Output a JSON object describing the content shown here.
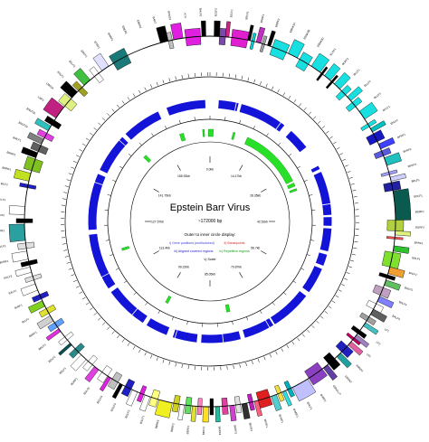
{
  "title": "Epstein Barr Virus",
  "subtitle": "~172000 bp",
  "legend": {
    "heading": "Outer to inner circle display:",
    "items": [
      {
        "text": "i) Gene positions (multicolored)",
        "color": "#3a3ad0"
      },
      {
        "text": "ii) Breakpoints",
        "color": "#e02020"
      },
      {
        "text": "iii) Aligned covered regions",
        "color": "#2020d0"
      },
      {
        "text": "iv) Repetitive regions",
        "color": "#18a018"
      },
      {
        "text": "v) Scale",
        "color": "#000000"
      }
    ]
  },
  "scale_labels": [
    "0.0kb",
    "14.17kb",
    "28.35kb",
    "42.52kb",
    "56.7kb",
    "70.87kb",
    "85.05kb",
    "99.22kb",
    "113.4kb",
    "127.57kb",
    "141.75kb",
    "155.92kb"
  ],
  "colors": {
    "aligned": "#1414d8",
    "repeat": "#28e028",
    "ring": "#000000"
  },
  "gene_labels": [
    "BZLF2",
    "BZLF1",
    "BRLF1",
    "BRRF1",
    "BRRF2",
    "EBNA3A",
    "EBNA3B",
    "EBNA3C",
    "BLRF1",
    "BLRF2",
    "BLLF1",
    "BLLF2",
    "BLLF3",
    "BFLF1",
    "BFLF2",
    "BFRF1",
    "BFRF2",
    "BFRF3",
    "BPLF1",
    "BOLF1",
    "BORF1",
    "BORF2",
    "BARF1",
    "BALF1",
    "BALF2",
    "BALF3",
    "BALF4",
    "BALF5",
    "LF1",
    "LF2",
    "LF3",
    "EBNA1",
    "EBNA2",
    "EBNA-LP",
    "BHRF1",
    "BHLF1",
    "BWRF1",
    "BCRF1",
    "BKRF1",
    "BKRF2",
    "BKRF3",
    "BKRF4",
    "BBLF1",
    "BBRF1",
    "BBRF2",
    "BBRF3",
    "BGLF1",
    "BGLF2",
    "BGLF3",
    "BGLF4",
    "BGLF5",
    "BGRF1",
    "BDLF1",
    "BDLF2",
    "BDLF3",
    "BDRF1",
    "BcLF1",
    "BcRF1",
    "BXLF1",
    "BXLF2",
    "BXRF1",
    "BVLF1",
    "BVRF1",
    "BVRF2",
    "BILF1",
    "BILF2",
    "BMRF1",
    "BMRF2",
    "BMLF1",
    "BNLF2a",
    "BNLF2b",
    "LMP1",
    "LMP2A",
    "BSLF1",
    "BSLF2",
    "BSRF1",
    "BTRF1",
    "BNRF1",
    "EBER1",
    "EBER2",
    "BART",
    "RPMS1",
    "A73",
    "BALF2"
  ],
  "genes": [
    {
      "s": 0.6,
      "e": 1.4,
      "c": "#000000"
    },
    {
      "s": 1.4,
      "e": 2.3,
      "c": "#7a4aa8"
    },
    {
      "s": 2.3,
      "e": 2.8,
      "c": "#d02080"
    },
    {
      "s": 3.2,
      "e": 5.6,
      "c": "#e020d0"
    },
    {
      "s": 5.6,
      "e": 6.0,
      "c": "#000000"
    },
    {
      "s": 6.2,
      "e": 6.6,
      "c": "#00d0d0"
    },
    {
      "s": 6.9,
      "e": 7.6,
      "c": "#c030c0"
    },
    {
      "s": 7.8,
      "e": 8.2,
      "c": "#a0a0a0"
    },
    {
      "s": 8.6,
      "e": 9.1,
      "c": "#000000"
    },
    {
      "s": 9.4,
      "e": 11.6,
      "c": "#18e0e0"
    },
    {
      "s": 11.9,
      "e": 13.4,
      "c": "#18e0e0"
    },
    {
      "s": 13.8,
      "e": 15.3,
      "c": "#18e0e0"
    },
    {
      "s": 15.8,
      "e": 17.4,
      "c": "#18e0e0"
    },
    {
      "s": 17.6,
      "e": 17.9,
      "c": "#000000"
    },
    {
      "s": 18.2,
      "e": 19.3,
      "c": "#18e0e0"
    },
    {
      "s": 19.5,
      "e": 19.8,
      "c": "#000000"
    },
    {
      "s": 20.1,
      "e": 21.2,
      "c": "#18e0e0"
    },
    {
      "s": 21.6,
      "e": 22.4,
      "c": "#18e0e0"
    },
    {
      "s": 22.8,
      "e": 23.6,
      "c": "#18e0e0"
    },
    {
      "s": 23.9,
      "e": 24.7,
      "c": "#18e0e0"
    },
    {
      "s": 25.6,
      "e": 27.0,
      "c": "#18e0e0"
    },
    {
      "s": 27.8,
      "e": 28.3,
      "c": "#18e0e0"
    },
    {
      "s": 28.6,
      "e": 29.2,
      "c": "#00c0c0"
    },
    {
      "s": 29.5,
      "e": 30.8,
      "c": "#1818c0"
    },
    {
      "s": 31.2,
      "e": 32.0,
      "c": "#4040ff"
    },
    {
      "s": 32.3,
      "e": 33.1,
      "c": "#5a5adc"
    },
    {
      "s": 33.4,
      "e": 34.6,
      "c": "#20c0c0"
    },
    {
      "s": 35.6,
      "e": 36.0,
      "c": "#a0a0ff"
    },
    {
      "s": 36.4,
      "e": 37.0,
      "c": "#d0d0ff"
    },
    {
      "s": 37.2,
      "e": 38.4,
      "c": "#2020a0"
    },
    {
      "s": 38.5,
      "e": 42.8,
      "c": "#0a5a50"
    },
    {
      "s": 42.8,
      "e": 44.4,
      "c": "#b0d040"
    },
    {
      "s": 44.4,
      "e": 45.0,
      "c": "#e0f080"
    },
    {
      "s": 45.3,
      "e": 45.6,
      "c": "#ff5050"
    },
    {
      "s": 46.6,
      "e": 47.4,
      "c": "#30c030"
    },
    {
      "s": 47.6,
      "e": 49.8,
      "c": "#80e030"
    },
    {
      "s": 49.8,
      "e": 50.8,
      "c": "#f0a030"
    },
    {
      "s": 51.0,
      "e": 51.5,
      "c": "#000000"
    },
    {
      "s": 51.8,
      "e": 52.6,
      "c": "#60c060"
    },
    {
      "s": 53.0,
      "e": 54.2,
      "c": "#c0a0c0"
    },
    {
      "s": 54.4,
      "e": 55.2,
      "c": "#8080ff"
    },
    {
      "s": 55.6,
      "e": 56.5,
      "c": "#ffffff"
    },
    {
      "s": 56.5,
      "e": 57.4,
      "c": "#606060"
    },
    {
      "s": 57.8,
      "e": 58.5,
      "c": "#a0a0a0"
    },
    {
      "s": 58.8,
      "e": 59.4,
      "c": "#40c0c0"
    },
    {
      "s": 60.2,
      "e": 60.8,
      "c": "#000000"
    },
    {
      "s": 61.0,
      "e": 61.6,
      "c": "#a080c0"
    },
    {
      "s": 61.6,
      "e": 62.0,
      "c": "#c00060"
    },
    {
      "s": 62.3,
      "e": 63.0,
      "c": "#e060a0"
    },
    {
      "s": 63.2,
      "e": 64.4,
      "c": "#2020c0"
    },
    {
      "s": 64.6,
      "e": 65.4,
      "c": "#20a0a0"
    },
    {
      "s": 65.8,
      "e": 67.0,
      "c": "#000000"
    },
    {
      "s": 67.2,
      "e": 68.0,
      "c": "#6040a0"
    },
    {
      "s": 68.2,
      "e": 70.6,
      "c": "#8a40c0"
    },
    {
      "s": 70.8,
      "e": 73.4,
      "c": "#c0c0ff"
    },
    {
      "s": 73.6,
      "e": 74.2,
      "c": "#00b0c0"
    },
    {
      "s": 74.5,
      "e": 75.0,
      "c": "#30e0e0"
    },
    {
      "s": 75.2,
      "e": 75.8,
      "c": "#f0e040"
    },
    {
      "s": 76.0,
      "e": 76.8,
      "c": "#50d0d0"
    },
    {
      "s": 77.0,
      "e": 78.8,
      "c": "#e02020"
    },
    {
      "s": 78.8,
      "e": 79.4,
      "c": "#ff6080"
    },
    {
      "s": 79.6,
      "e": 80.2,
      "c": "#c020c0"
    },
    {
      "s": 80.5,
      "e": 81.3,
      "c": "#303030"
    },
    {
      "s": 81.5,
      "e": 82.2,
      "c": "#e0e0e0"
    },
    {
      "s": 82.4,
      "e": 83.1,
      "c": "#d040d0"
    },
    {
      "s": 83.4,
      "e": 84.2,
      "c": "#e040a0"
    },
    {
      "s": 84.6,
      "e": 85.2,
      "c": "#20c0a0"
    },
    {
      "s": 85.5,
      "e": 86.0,
      "c": "#000000"
    },
    {
      "s": 86.2,
      "e": 87.0,
      "c": "#ffe020"
    },
    {
      "s": 87.2,
      "e": 87.8,
      "c": "#ff80c0"
    },
    {
      "s": 88.0,
      "e": 88.6,
      "c": "#e0e030"
    },
    {
      "s": 88.8,
      "e": 89.6,
      "c": "#60e060"
    },
    {
      "s": 89.8,
      "e": 90.4,
      "c": "#ffffff"
    },
    {
      "s": 90.6,
      "e": 91.4,
      "c": "#d0d020"
    },
    {
      "s": 91.6,
      "e": 93.6,
      "c": "#f0f020"
    },
    {
      "s": 93.8,
      "e": 94.8,
      "c": "#ffff80"
    },
    {
      "s": 95.0,
      "e": 95.8,
      "c": "#ffffff"
    },
    {
      "s": 96.0,
      "e": 96.6,
      "c": "#e020e0"
    },
    {
      "s": 97.0,
      "e": 97.8,
      "c": "#ffffff"
    },
    {
      "s": 98.0,
      "e": 99.0,
      "c": "#2020c0"
    },
    {
      "s": 99.4,
      "e": 99.9,
      "c": "#000000"
    },
    {
      "s": 100.2,
      "e": 101.2,
      "c": "#c0c0c0"
    },
    {
      "s": 101.4,
      "e": 101.9,
      "c": "#e020e0"
    },
    {
      "s": 102.0,
      "e": 103.0,
      "c": "#ffffff"
    },
    {
      "s": 103.6,
      "e": 104.4,
      "c": "#e040e0"
    },
    {
      "s": 104.8,
      "e": 105.6,
      "c": "#ffffff"
    },
    {
      "s": 106.0,
      "e": 107.0,
      "c": "#ffffff"
    },
    {
      "s": 107.5,
      "e": 108.3,
      "c": "#2a8a8a"
    },
    {
      "s": 109.0,
      "e": 109.4,
      "c": "#0a5050"
    },
    {
      "s": 110.0,
      "e": 110.6,
      "c": "#ffffff"
    },
    {
      "s": 111.6,
      "e": 112.1,
      "c": "#e030e0"
    },
    {
      "s": 112.4,
      "e": 113.2,
      "c": "#60a0ff"
    },
    {
      "s": 113.5,
      "e": 114.4,
      "c": "#d0d0d0"
    },
    {
      "s": 114.8,
      "e": 115.6,
      "c": "#e0e030"
    },
    {
      "s": 116.0,
      "e": 116.9,
      "c": "#80d020"
    },
    {
      "s": 117.2,
      "e": 117.9,
      "c": "#2020c0"
    },
    {
      "s": 118.6,
      "e": 119.6,
      "c": "#ffffff"
    },
    {
      "s": 120.2,
      "e": 120.8,
      "c": "#e0e0e0"
    },
    {
      "s": 121.4,
      "e": 122.2,
      "c": "#ffffff"
    },
    {
      "s": 122.5,
      "e": 123.1,
      "c": "#000000"
    },
    {
      "s": 123.4,
      "e": 124.6,
      "c": "#ffffff"
    },
    {
      "s": 125.0,
      "e": 125.8,
      "c": "#e0e0e0"
    },
    {
      "s": 126.2,
      "e": 128.6,
      "c": "#2aa0a0"
    },
    {
      "s": 128.8,
      "e": 129.4,
      "c": "#000000"
    },
    {
      "s": 130.0,
      "e": 131.2,
      "c": "#ffffff"
    },
    {
      "s": 134.0,
      "e": 134.5,
      "c": "#2020c0"
    },
    {
      "s": 135.0,
      "e": 136.2,
      "c": "#c0e020"
    },
    {
      "s": 136.6,
      "e": 138.4,
      "c": "#80c020"
    },
    {
      "s": 138.6,
      "e": 139.4,
      "c": "#000000"
    },
    {
      "s": 139.6,
      "e": 140.6,
      "c": "#606060"
    },
    {
      "s": 140.8,
      "e": 141.6,
      "c": "#808080"
    },
    {
      "s": 141.8,
      "e": 142.6,
      "c": "#e040e0"
    },
    {
      "s": 143.0,
      "e": 143.8,
      "c": "#30c0c0"
    },
    {
      "s": 144.0,
      "e": 144.8,
      "c": "#000000"
    },
    {
      "s": 145.2,
      "e": 147.2,
      "c": "#c02080"
    },
    {
      "s": 147.4,
      "e": 148.8,
      "c": "#e0f080"
    },
    {
      "s": 149.0,
      "e": 150.2,
      "c": "#000000"
    },
    {
      "s": 150.4,
      "e": 151.2,
      "c": "#a0a020"
    },
    {
      "s": 151.6,
      "e": 152.8,
      "c": "#40c040"
    },
    {
      "s": 153.6,
      "e": 154.4,
      "c": "#ffffff"
    },
    {
      "s": 155.0,
      "e": 156.2,
      "c": "#e0e0ff"
    },
    {
      "s": 157.0,
      "e": 159.4,
      "c": "#1a7a7a"
    },
    {
      "s": 164.6,
      "e": 165.8,
      "c": "#000000"
    },
    {
      "s": 165.8,
      "e": 166.4,
      "c": "#c0c0c0"
    },
    {
      "s": 166.6,
      "e": 168.0,
      "c": "#e020e0"
    },
    {
      "s": 168.4,
      "e": 170.6,
      "c": "#e020e0"
    },
    {
      "s": 170.8,
      "e": 171.4,
      "c": "#000000"
    }
  ],
  "aligned_regions": [
    [
      2.0,
      6.5
    ],
    [
      7.2,
      18.0
    ],
    [
      20.0,
      25.0
    ],
    [
      30.0,
      30.8
    ],
    [
      31.5,
      41.5
    ],
    [
      42.0,
      44.0
    ],
    [
      44.6,
      49.8
    ],
    [
      50.6,
      53.2
    ],
    [
      54.0,
      60.0
    ],
    [
      61.0,
      70.6
    ],
    [
      71.0,
      78.0
    ],
    [
      79.0,
      88.0
    ],
    [
      89.0,
      94.5
    ],
    [
      96.0,
      101.0
    ],
    [
      102.0,
      112.0
    ],
    [
      113.0,
      126.0
    ],
    [
      127.0,
      140.0
    ],
    [
      141.0,
      150.0
    ],
    [
      151.0,
      160.0
    ],
    [
      162.0,
      171.0
    ]
  ],
  "repeat_regions": [
    [
      -0.5,
      1.0
    ],
    [
      7.0,
      7.6
    ],
    [
      11.5,
      30.5
    ],
    [
      31.2,
      32.2
    ],
    [
      33.0,
      33.6
    ],
    [
      80.0,
      81.0
    ],
    [
      99.0,
      99.8
    ],
    [
      120.2,
      120.9
    ],
    [
      150.0,
      151.0
    ],
    [
      162.8,
      164.0
    ],
    [
      169.8,
      170.3
    ]
  ]
}
